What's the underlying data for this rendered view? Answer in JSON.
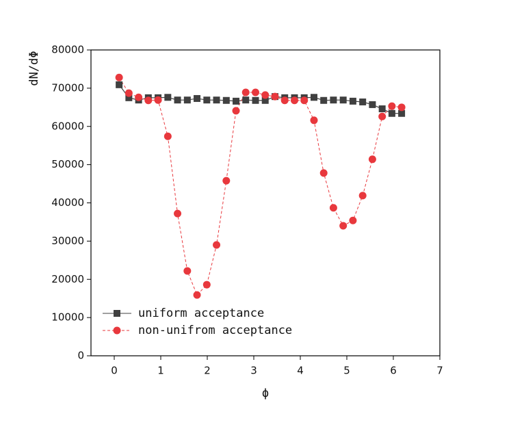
{
  "chart_data": {
    "type": "line",
    "xlabel": "ϕ",
    "ylabel": "dN/dΦ",
    "x": [
      0.105,
      0.314,
      0.524,
      0.733,
      0.942,
      1.152,
      1.361,
      1.571,
      1.78,
      1.99,
      2.199,
      2.409,
      2.618,
      2.827,
      3.037,
      3.246,
      3.456,
      3.665,
      3.875,
      4.084,
      4.294,
      4.503,
      4.712,
      4.922,
      5.131,
      5.341,
      5.55,
      5.76,
      5.969,
      6.178
    ],
    "series": [
      {
        "name": "uniform acceptance",
        "color": "#404040",
        "marker": "square",
        "dashed": false,
        "values": [
          70900,
          67500,
          66900,
          67500,
          67500,
          67600,
          66900,
          66900,
          67300,
          66900,
          66900,
          66800,
          66600,
          66900,
          66800,
          66800,
          67800,
          67500,
          67500,
          67500,
          67600,
          66800,
          66900,
          66900,
          66600,
          66400,
          65700,
          64600,
          63400,
          63400
        ]
      },
      {
        "name": "non-unifrom acceptance",
        "color": "#e8383d",
        "marker": "circle",
        "dashed": true,
        "values": [
          72800,
          68700,
          67600,
          66800,
          66900,
          57400,
          37200,
          22200,
          15900,
          18600,
          29000,
          45800,
          64100,
          68900,
          68900,
          68200,
          67800,
          66800,
          66800,
          66800,
          61600,
          47800,
          38700,
          34000,
          35400,
          41900,
          51400,
          62600,
          65300,
          65000
        ]
      }
    ],
    "xlim": [
      -0.5,
      7
    ],
    "xticks": [
      0,
      1,
      2,
      3,
      4,
      5,
      6,
      7
    ],
    "ylim": [
      0,
      80000
    ],
    "yticks": [
      0,
      10000,
      20000,
      30000,
      40000,
      50000,
      60000,
      70000,
      80000
    ],
    "legend": "lower left"
  }
}
